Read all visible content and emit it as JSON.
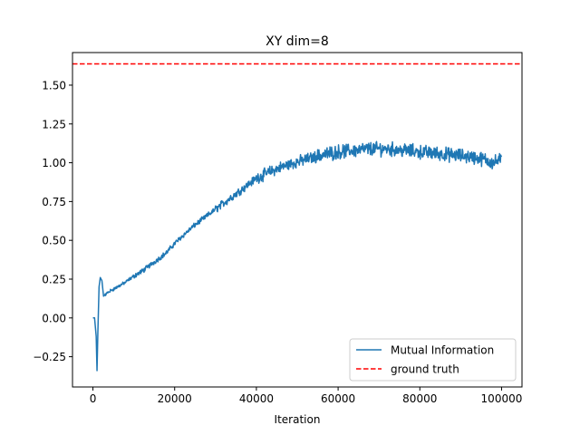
{
  "chart_data": {
    "type": "line",
    "title": "XY dim=8",
    "xlabel": "Iteration",
    "ylabel": "",
    "xlim": [
      -5000,
      105000
    ],
    "ylim": [
      -0.445,
      1.71
    ],
    "xticks": [
      0,
      20000,
      40000,
      60000,
      80000,
      100000
    ],
    "xtick_labels": [
      "0",
      "20000",
      "40000",
      "60000",
      "80000",
      "100000"
    ],
    "yticks": [
      -0.25,
      0.0,
      0.25,
      0.5,
      0.75,
      1.0,
      1.25,
      1.5
    ],
    "ytick_labels": [
      "−0.25",
      "0.00",
      "0.25",
      "0.50",
      "0.75",
      "1.00",
      "1.25",
      "1.50"
    ],
    "grid": false,
    "legend_position": "lower-right",
    "series": [
      {
        "name": "Mutual Information",
        "color": "#1f77b4",
        "style": "solid",
        "noisy": true,
        "x": [
          0,
          400,
          800,
          1000,
          1200,
          1500,
          1800,
          2200,
          2600,
          3000,
          4000,
          6000,
          8000,
          10000,
          12000,
          15000,
          18000,
          20000,
          22000,
          25000,
          28000,
          30000,
          33000,
          36000,
          40000,
          44000,
          48000,
          52000,
          56000,
          60000,
          64000,
          68000,
          72000,
          76000,
          80000,
          84000,
          88000,
          92000,
          96000,
          98000,
          100000
        ],
        "y": [
          0.0,
          0.0,
          -0.12,
          -0.34,
          -0.1,
          0.2,
          0.26,
          0.24,
          0.14,
          0.15,
          0.17,
          0.2,
          0.23,
          0.27,
          0.3,
          0.36,
          0.42,
          0.48,
          0.53,
          0.6,
          0.66,
          0.7,
          0.76,
          0.82,
          0.9,
          0.95,
          0.99,
          1.02,
          1.05,
          1.07,
          1.08,
          1.09,
          1.09,
          1.08,
          1.07,
          1.06,
          1.05,
          1.04,
          1.02,
          1.0,
          1.02
        ]
      },
      {
        "name": "ground truth",
        "color": "#ff0000",
        "style": "dashed",
        "x": [
          -5000,
          105000
        ],
        "y": [
          1.637,
          1.637
        ]
      }
    ]
  }
}
